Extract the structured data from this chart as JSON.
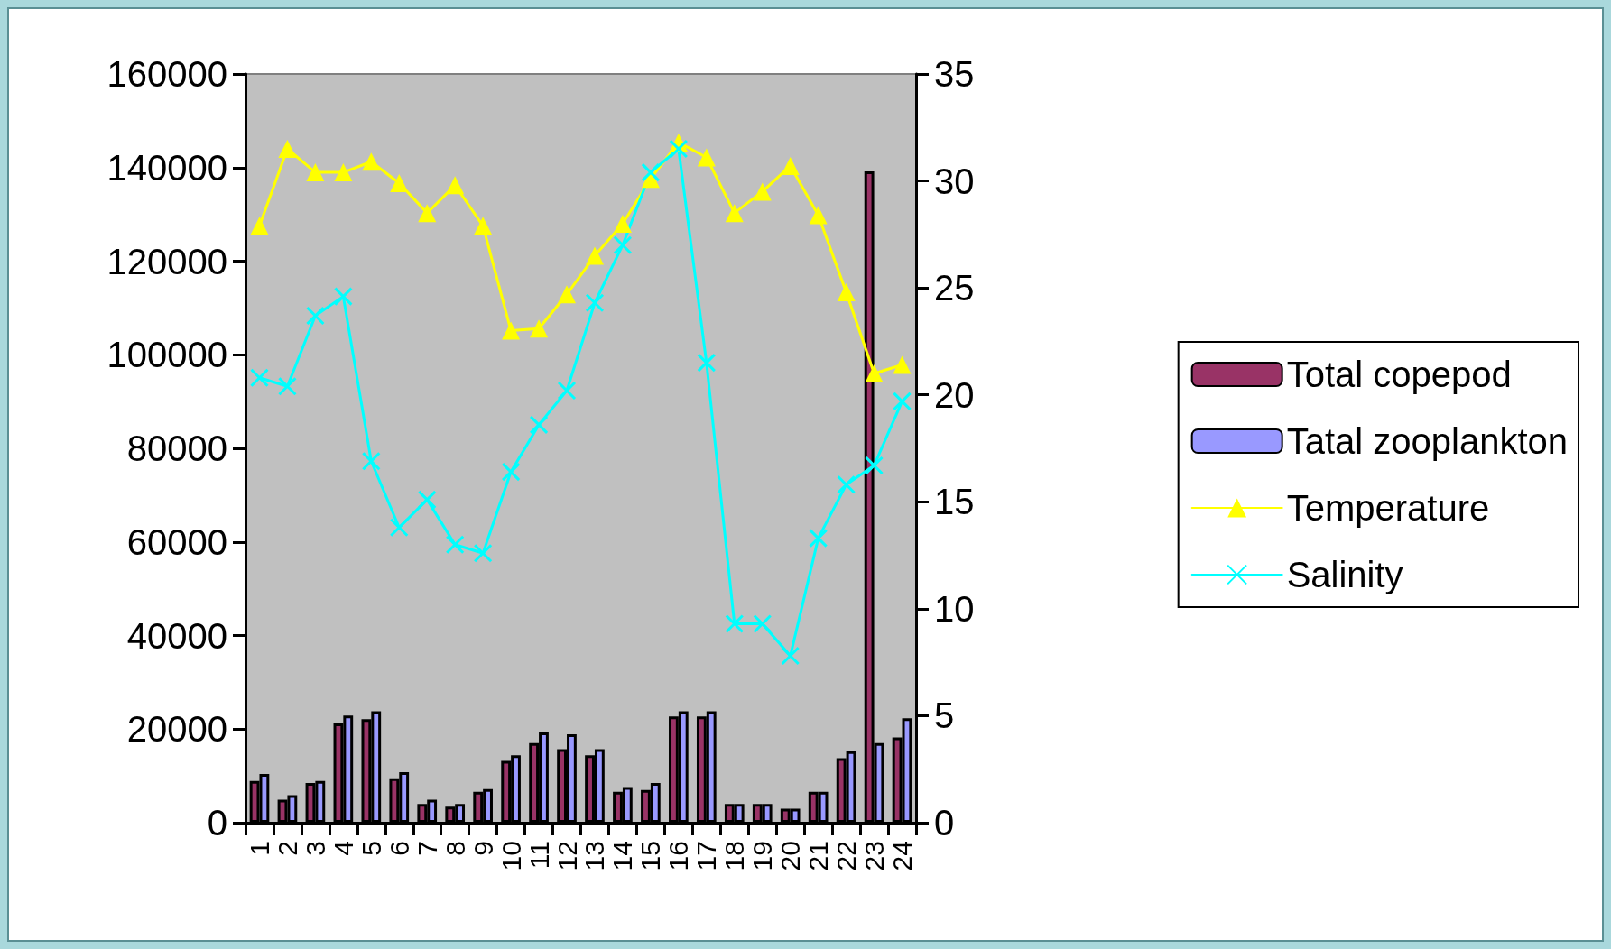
{
  "chart_data": {
    "type": "bar",
    "categories": [
      "1",
      "2",
      "3",
      "4",
      "5",
      "6",
      "7",
      "8",
      "9",
      "10",
      "11",
      "12",
      "13",
      "14",
      "15",
      "16",
      "17",
      "18",
      "19",
      "20",
      "21",
      "22",
      "23",
      "24"
    ],
    "series": [
      {
        "name": "Total copepod",
        "color": "#993366",
        "values": [
          8900,
          4900,
          8500,
          21200,
          22100,
          9500,
          4000,
          3400,
          6600,
          13200,
          17000,
          15700,
          14400,
          6600,
          7000,
          22700,
          22700,
          4000,
          4000,
          3000,
          6600,
          13800,
          139200,
          18200
        ]
      },
      {
        "name": "Tatal zooplankton",
        "color": "#9999ff",
        "values": [
          10400,
          5900,
          8900,
          22900,
          23800,
          10800,
          4900,
          4000,
          7200,
          14400,
          19300,
          18900,
          15700,
          7600,
          8500,
          23800,
          23800,
          4000,
          4000,
          3000,
          6600,
          15300,
          17000,
          22300
        ]
      },
      {
        "name": "Temperature",
        "type": "line",
        "axis": "y2",
        "color": "#ffff00",
        "marker": "triangle",
        "values": [
          27.9,
          31.5,
          30.4,
          30.4,
          30.9,
          29.9,
          28.5,
          29.8,
          27.9,
          23.0,
          23.1,
          24.7,
          26.5,
          28.0,
          30.1,
          31.8,
          31.1,
          28.5,
          29.5,
          30.7,
          28.4,
          24.8,
          21.0,
          21.4
        ]
      },
      {
        "name": "Salinity",
        "type": "line",
        "axis": "y2",
        "color": "#00ffff",
        "marker": "cross",
        "values": [
          20.8,
          20.4,
          23.7,
          24.6,
          16.9,
          13.8,
          15.1,
          13.0,
          12.6,
          16.4,
          18.6,
          20.2,
          24.3,
          27.0,
          30.4,
          31.5,
          21.5,
          9.3,
          9.3,
          7.8,
          13.3,
          15.8,
          16.7,
          19.7
        ]
      }
    ],
    "ylim": [
      0,
      160000
    ],
    "yticks": [
      0,
      20000,
      40000,
      60000,
      80000,
      100000,
      120000,
      140000,
      160000
    ],
    "y2lim": [
      0,
      35
    ],
    "y2ticks": [
      0,
      5,
      10,
      15,
      20,
      25,
      30,
      35
    ],
    "grid": false,
    "legend": "right"
  }
}
